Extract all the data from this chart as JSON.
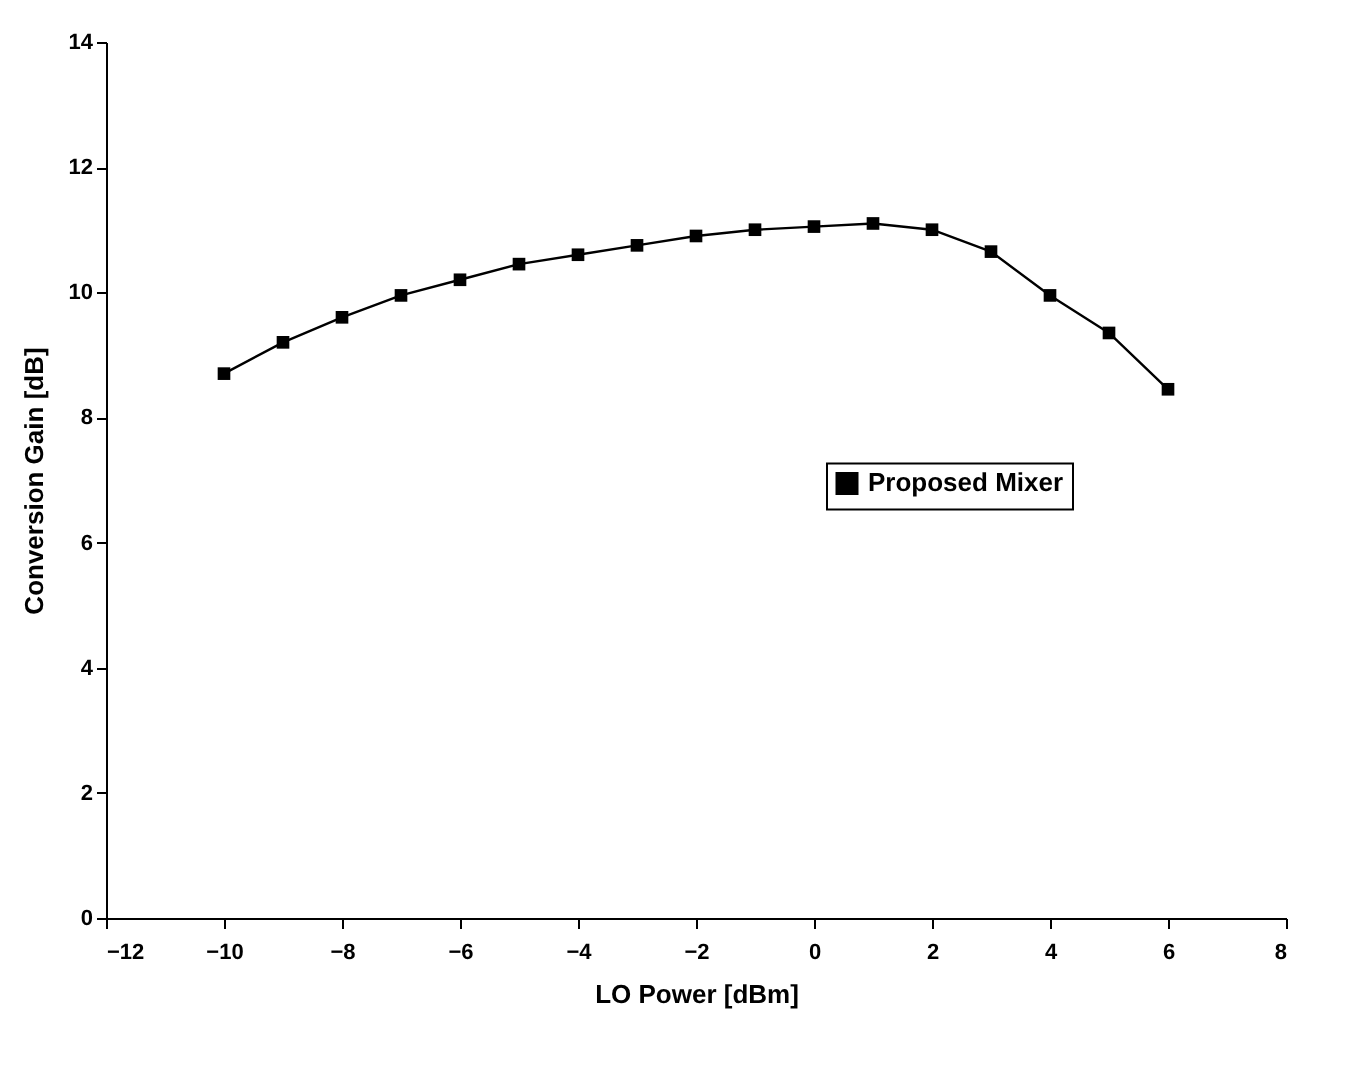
{
  "chart_data": {
    "type": "line",
    "xlabel": "LO Power [dBm]",
    "ylabel": "Conversion Gain [dB]",
    "x": [
      -10,
      -9,
      -8,
      -7,
      -6,
      -5,
      -4,
      -3,
      -2,
      -1,
      0,
      1,
      2,
      3,
      4,
      5,
      6
    ],
    "series": [
      {
        "name": "Proposed Mixer",
        "color": "#000000",
        "values": [
          8.7,
          9.2,
          9.6,
          9.95,
          10.2,
          10.45,
          10.6,
          10.75,
          10.9,
          11.0,
          11.05,
          11.1,
          11.0,
          10.65,
          9.95,
          9.35,
          8.45
        ]
      }
    ],
    "xlim": [
      -12,
      8
    ],
    "xticks": [
      -12,
      -10,
      -8,
      -6,
      -4,
      -2,
      0,
      2,
      4,
      6,
      8
    ],
    "ylim": [
      0,
      14
    ],
    "yticks": [
      0,
      2,
      4,
      6,
      8,
      10,
      12,
      14
    ],
    "legend": "right",
    "marker": "square",
    "line_style": "solid",
    "grid": false
  }
}
